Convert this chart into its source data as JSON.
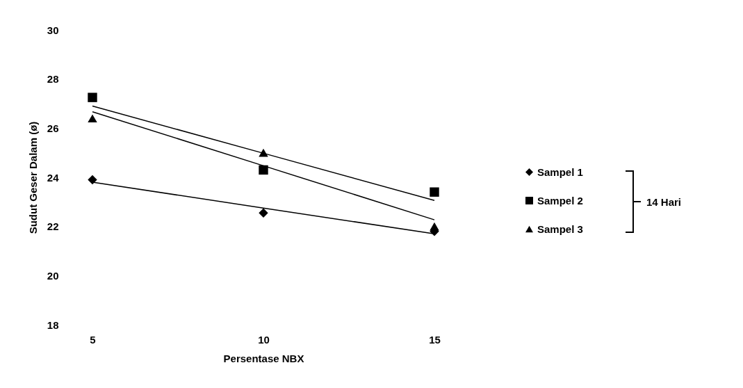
{
  "chart_data": {
    "type": "scatter",
    "xlabel": "Persentase NBX",
    "ylabel": "Sudut Geser Dalam (ø)",
    "x": [
      5,
      10,
      15
    ],
    "xlim": [
      5,
      15
    ],
    "xticks": [
      5,
      10,
      15
    ],
    "ylim": [
      18,
      30
    ],
    "yticks": [
      18,
      20,
      22,
      24,
      26,
      28,
      30
    ],
    "grid": false,
    "legend": "right",
    "annotations": [
      "14 Hari"
    ],
    "series": [
      {
        "name": "Sampel 1",
        "color": "#000000",
        "marker": "diamond",
        "values": [
          23.9,
          22.55,
          21.8
        ]
      },
      {
        "name": "Sampel 2",
        "color": "#000000",
        "marker": "square",
        "values": [
          27.25,
          24.3,
          23.4
        ]
      },
      {
        "name": "Sampel 3",
        "color": "#000000",
        "marker": "triangle",
        "values": [
          26.4,
          25.0,
          22.0
        ]
      },
      {
        "type": "line",
        "color": "#000000",
        "values": [
          23.8,
          22.75,
          21.7
        ]
      },
      {
        "type": "line",
        "color": "#000000",
        "values": [
          26.9,
          24.98,
          23.06
        ]
      },
      {
        "type": "line",
        "color": "#000000",
        "values": [
          26.67,
          24.47,
          22.27
        ]
      }
    ]
  }
}
